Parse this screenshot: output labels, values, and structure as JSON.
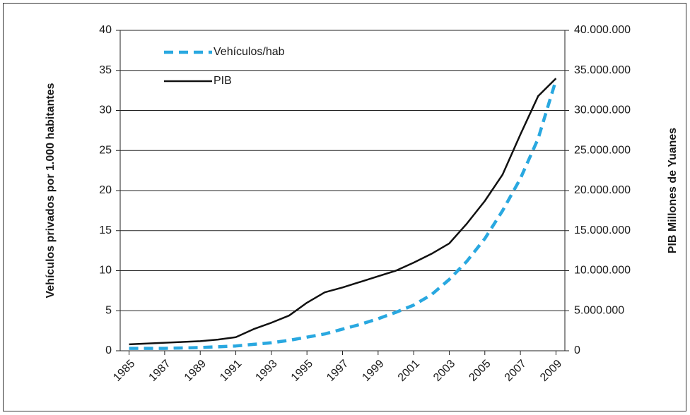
{
  "chart_data": {
    "type": "line",
    "ylabel": "Vehículos privados por 1.000 habitantes",
    "y2label": "PIB Millones de Yuanes",
    "x": [
      1985,
      1986,
      1987,
      1988,
      1989,
      1990,
      1991,
      1992,
      1993,
      1994,
      1995,
      1996,
      1997,
      1998,
      1999,
      2000,
      2001,
      2002,
      2003,
      2004,
      2005,
      2006,
      2007,
      2008,
      2009
    ],
    "xlim": [
      1984.5,
      2009.5
    ],
    "xticks": [
      1985,
      1987,
      1989,
      1991,
      1993,
      1995,
      1997,
      1999,
      2001,
      2003,
      2005,
      2007,
      2009
    ],
    "ylim": [
      0,
      40
    ],
    "yticks": [
      0,
      5,
      10,
      15,
      20,
      25,
      30,
      35,
      40
    ],
    "y2lim": [
      0,
      40000000
    ],
    "y2ticks": [
      0,
      {
        "value": 5000000,
        "label": "5.000.000"
      },
      {
        "value": 10000000,
        "label": "10.000.000"
      },
      {
        "value": 15000000,
        "label": "15.000.000"
      },
      {
        "value": 20000000,
        "label": "20.000.000"
      },
      {
        "value": 25000000,
        "label": "25.000.000"
      },
      {
        "value": 30000000,
        "label": "30.000.000"
      },
      {
        "value": 35000000,
        "label": "35.000.000"
      },
      {
        "value": 40000000,
        "label": "40.000.000"
      }
    ],
    "grid": true,
    "legend": "top-left",
    "series": [
      {
        "name": "Vehículos/hab",
        "color": "#29a8e0",
        "dashed": true,
        "values": [
          0.3,
          0.3,
          0.3,
          0.35,
          0.4,
          0.5,
          0.6,
          0.8,
          1.0,
          1.3,
          1.7,
          2.1,
          2.7,
          3.3,
          4.0,
          4.8,
          5.7,
          7.0,
          8.9,
          11.2,
          14.0,
          17.5,
          21.5,
          26.5,
          33.8
        ]
      },
      {
        "name": "PIB",
        "color": "#111111",
        "axis": "y2",
        "values": [
          800000,
          900000,
          1000000,
          1100000,
          1200000,
          1400000,
          1700000,
          2700000,
          3500000,
          4400000,
          6000000,
          7300000,
          7900000,
          8600000,
          9300000,
          10000000,
          11000000,
          12100000,
          13400000,
          15900000,
          18700000,
          22000000,
          27000000,
          31800000,
          34000000
        ]
      }
    ]
  }
}
